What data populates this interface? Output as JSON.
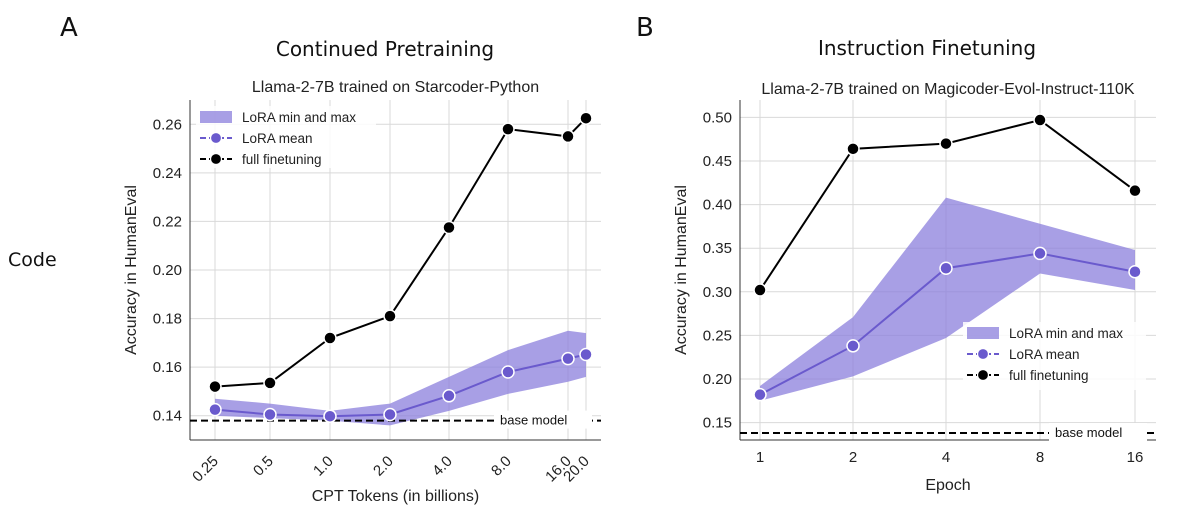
{
  "figure": {
    "panel_letters": [
      "A",
      "B"
    ],
    "section_titles": [
      "Continued Pretraining",
      "Instruction Finetuning"
    ],
    "row_label": "Code"
  },
  "colors": {
    "lora": "#6a5acd",
    "lora_band": "#8b7fdc",
    "full": "#000000",
    "grid": "#d9d9d9"
  },
  "chart_data": [
    {
      "type": "line",
      "title": "Llama-2-7B trained on Starcoder-Python",
      "xlabel": "CPT Tokens (in billions)",
      "ylabel": "Accuracy in HumanEval",
      "x": [
        0.25,
        0.5,
        1.0,
        2.0,
        4.0,
        8.0,
        16.0,
        20.0
      ],
      "x_tick_labels": [
        "0.25",
        "0.5",
        "1.0",
        "2.0",
        "4.0",
        "8.0",
        "16.0",
        "20.0"
      ],
      "x_scale": "log2",
      "ylim": [
        0.13,
        0.27
      ],
      "y_ticks": [
        0.14,
        0.16,
        0.18,
        0.2,
        0.22,
        0.24,
        0.26
      ],
      "y_tick_labels": [
        "0.14",
        "0.16",
        "0.18",
        "0.20",
        "0.22",
        "0.24",
        "0.26"
      ],
      "series": [
        {
          "name": "LoRA min and max",
          "kind": "band",
          "lower": [
            0.14,
            0.139,
            0.138,
            0.136,
            0.142,
            0.149,
            0.154,
            0.156
          ],
          "upper": [
            0.147,
            0.145,
            0.142,
            0.145,
            0.156,
            0.167,
            0.175,
            0.174
          ]
        },
        {
          "name": "LoRA mean",
          "kind": "line",
          "values": [
            0.1425,
            0.1405,
            0.1398,
            0.1405,
            0.1482,
            0.158,
            0.1635,
            0.1652
          ]
        },
        {
          "name": "full finetuning",
          "kind": "line",
          "values": [
            0.152,
            0.1535,
            0.172,
            0.181,
            0.2175,
            0.258,
            0.255,
            0.2625
          ]
        }
      ],
      "reference_line": {
        "label": "base model",
        "value": 0.138
      },
      "legend": {
        "position": "top-left",
        "entries": [
          "LoRA min and max",
          "LoRA mean",
          "full finetuning"
        ]
      }
    },
    {
      "type": "line",
      "title": "Llama-2-7B trained on Magicoder-Evol-Instruct-110K",
      "xlabel": "Epoch",
      "ylabel": "Accuracy in HumanEval",
      "x": [
        1,
        2,
        4,
        8,
        16
      ],
      "x_tick_labels": [
        "1",
        "2",
        "4",
        "8",
        "16"
      ],
      "x_scale": "log2",
      "ylim": [
        0.13,
        0.52
      ],
      "y_ticks": [
        0.15,
        0.2,
        0.25,
        0.3,
        0.35,
        0.4,
        0.45,
        0.5
      ],
      "y_tick_labels": [
        "0.15",
        "0.20",
        "0.25",
        "0.30",
        "0.35",
        "0.40",
        "0.45",
        "0.50"
      ],
      "series": [
        {
          "name": "LoRA min and max",
          "kind": "band",
          "lower": [
            0.175,
            0.203,
            0.247,
            0.321,
            0.302
          ],
          "upper": [
            0.192,
            0.271,
            0.408,
            0.378,
            0.348
          ]
        },
        {
          "name": "LoRA mean",
          "kind": "line",
          "values": [
            0.182,
            0.238,
            0.327,
            0.344,
            0.323
          ]
        },
        {
          "name": "full finetuning",
          "kind": "line",
          "values": [
            0.302,
            0.464,
            0.47,
            0.497,
            0.416
          ]
        }
      ],
      "reference_line": {
        "label": "base model",
        "value": 0.138
      },
      "legend": {
        "position": "center-right",
        "entries": [
          "LoRA min and max",
          "LoRA mean",
          "full finetuning"
        ]
      }
    }
  ]
}
